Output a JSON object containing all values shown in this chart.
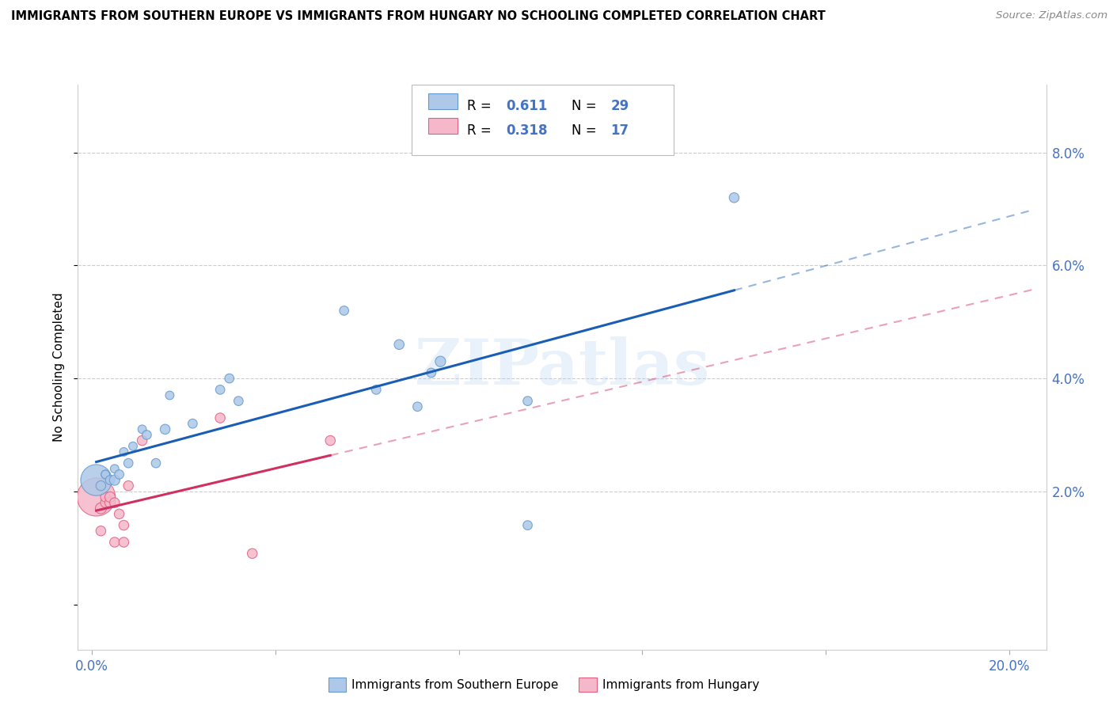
{
  "title": "IMMIGRANTS FROM SOUTHERN EUROPE VS IMMIGRANTS FROM HUNGARY NO SCHOOLING COMPLETED CORRELATION CHART",
  "source": "Source: ZipAtlas.com",
  "tick_color": "#4472c4",
  "ylabel": "No Schooling Completed",
  "blue_R": 0.611,
  "blue_N": 29,
  "pink_R": 0.318,
  "pink_N": 17,
  "blue_color": "#adc8e8",
  "blue_edge": "#6699cc",
  "pink_color": "#f5b8ca",
  "pink_edge": "#e06080",
  "blue_line_color": "#1a5db5",
  "pink_line_color": "#d03060",
  "legend_label_blue": "Immigrants from Southern Europe",
  "legend_label_pink": "Immigrants from Hungary",
  "watermark": "ZIPatlas",
  "blue_x": [
    0.001,
    0.002,
    0.003,
    0.003,
    0.004,
    0.005,
    0.005,
    0.006,
    0.007,
    0.008,
    0.009,
    0.011,
    0.012,
    0.014,
    0.016,
    0.017,
    0.022,
    0.028,
    0.03,
    0.032,
    0.055,
    0.062,
    0.067,
    0.071,
    0.074,
    0.076,
    0.095,
    0.14,
    0.095
  ],
  "blue_y": [
    0.022,
    0.021,
    0.023,
    0.023,
    0.022,
    0.024,
    0.022,
    0.023,
    0.027,
    0.025,
    0.028,
    0.031,
    0.03,
    0.025,
    0.031,
    0.037,
    0.032,
    0.038,
    0.04,
    0.036,
    0.052,
    0.038,
    0.046,
    0.035,
    0.041,
    0.043,
    0.036,
    0.072,
    0.014
  ],
  "blue_sizes": [
    800,
    80,
    60,
    60,
    70,
    60,
    90,
    70,
    60,
    70,
    60,
    60,
    70,
    70,
    80,
    60,
    70,
    70,
    70,
    70,
    70,
    70,
    80,
    70,
    70,
    90,
    70,
    80,
    70
  ],
  "pink_x": [
    0.001,
    0.002,
    0.002,
    0.003,
    0.003,
    0.004,
    0.004,
    0.005,
    0.005,
    0.006,
    0.007,
    0.007,
    0.008,
    0.011,
    0.028,
    0.052,
    0.035
  ],
  "pink_y": [
    0.019,
    0.017,
    0.013,
    0.018,
    0.019,
    0.018,
    0.019,
    0.018,
    0.011,
    0.016,
    0.011,
    0.014,
    0.021,
    0.029,
    0.033,
    0.029,
    0.009
  ],
  "pink_sizes": [
    1200,
    100,
    80,
    80,
    80,
    90,
    90,
    80,
    80,
    80,
    80,
    80,
    80,
    80,
    80,
    80,
    80
  ],
  "xlim": [
    -0.003,
    0.208
  ],
  "ylim": [
    -0.008,
    0.092
  ],
  "x_tick_positions": [
    0.0,
    0.04,
    0.08,
    0.12,
    0.16,
    0.2
  ],
  "y_tick_positions": [
    0.02,
    0.04,
    0.06,
    0.08
  ]
}
